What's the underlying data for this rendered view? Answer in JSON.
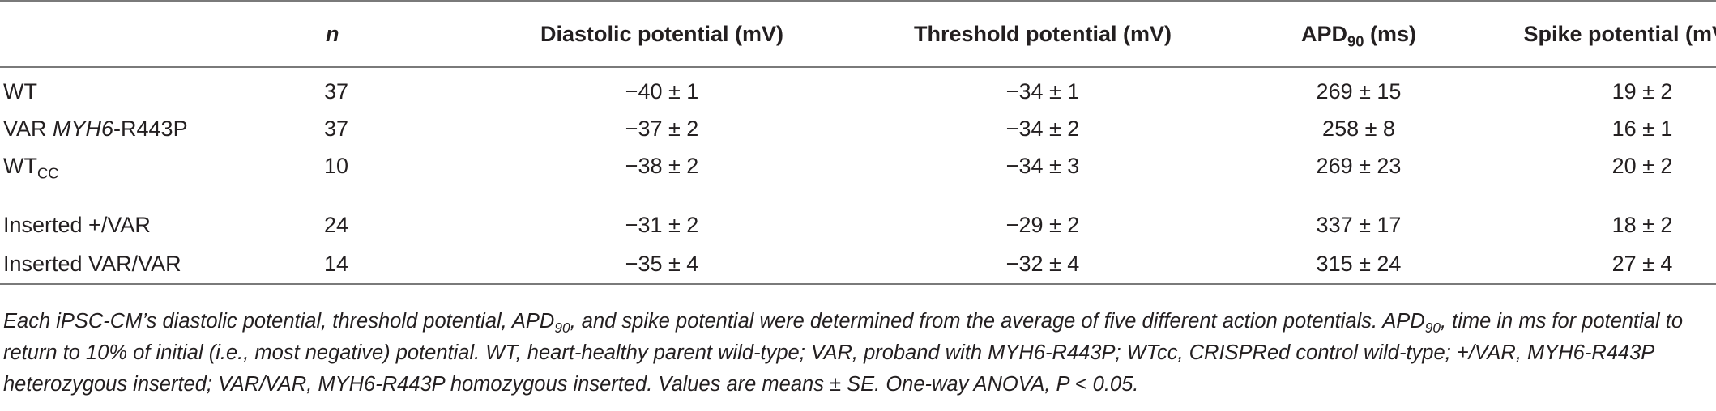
{
  "table": {
    "headers": {
      "n": "n",
      "diastolic": "Diastolic potential (mV)",
      "threshold": "Threshold potential (mV)",
      "apd_main": "APD",
      "apd_sub": "90",
      "apd_unit": " (ms)",
      "spike": "Spike potential (mV)"
    },
    "rows": [
      {
        "group_a": "WT",
        "group_b": "",
        "group_c": "",
        "n": "37",
        "diastolic": "−40 ± 1",
        "threshold": "−34 ± 1",
        "apd": "269 ± 15",
        "spike": "19 ± 2"
      },
      {
        "group_a": "VAR ",
        "group_b": "MYH6",
        "group_c": "-R443P",
        "n": "37",
        "diastolic": "−37 ± 2",
        "threshold": "−34 ± 2",
        "apd": "258 ± 8",
        "spike": "16 ± 1"
      },
      {
        "group_a": "WT",
        "group_sub": "CC",
        "n": "10",
        "diastolic": "−38 ± 2",
        "threshold": "−34 ± 3",
        "apd": "269 ± 23",
        "spike": "20 ± 2"
      },
      {
        "group_a": "Inserted +/VAR",
        "n": "24",
        "diastolic": "−31 ± 2",
        "threshold": "−29 ± 2",
        "apd": "337 ± 17",
        "spike": "18 ± 2"
      },
      {
        "group_a": "Inserted VAR/VAR",
        "n": "14",
        "diastolic": "−35 ± 4",
        "threshold": "−32 ± 4",
        "apd": "315 ± 24",
        "spike": "27 ± 4"
      }
    ]
  },
  "footnote": {
    "part1": "Each iPSC-CM’s diastolic potential, threshold potential, APD",
    "sub1": "90",
    "part2": ", and spike potential were determined from the average of five different action potentials. APD",
    "sub2": "90",
    "part3": ", time in ms for potential to return to 10% of initial (i.e., most negative) potential. WT, heart-healthy parent wild-type; VAR, proband with MYH6-R443P; WTcc, CRISPRed control wild-type; +/VAR, MYH6-R443P heterozygous inserted; VAR/VAR, MYH6-R443P homozygous inserted. Values are means ± SE. One-way ANOVA, P < 0.05."
  }
}
